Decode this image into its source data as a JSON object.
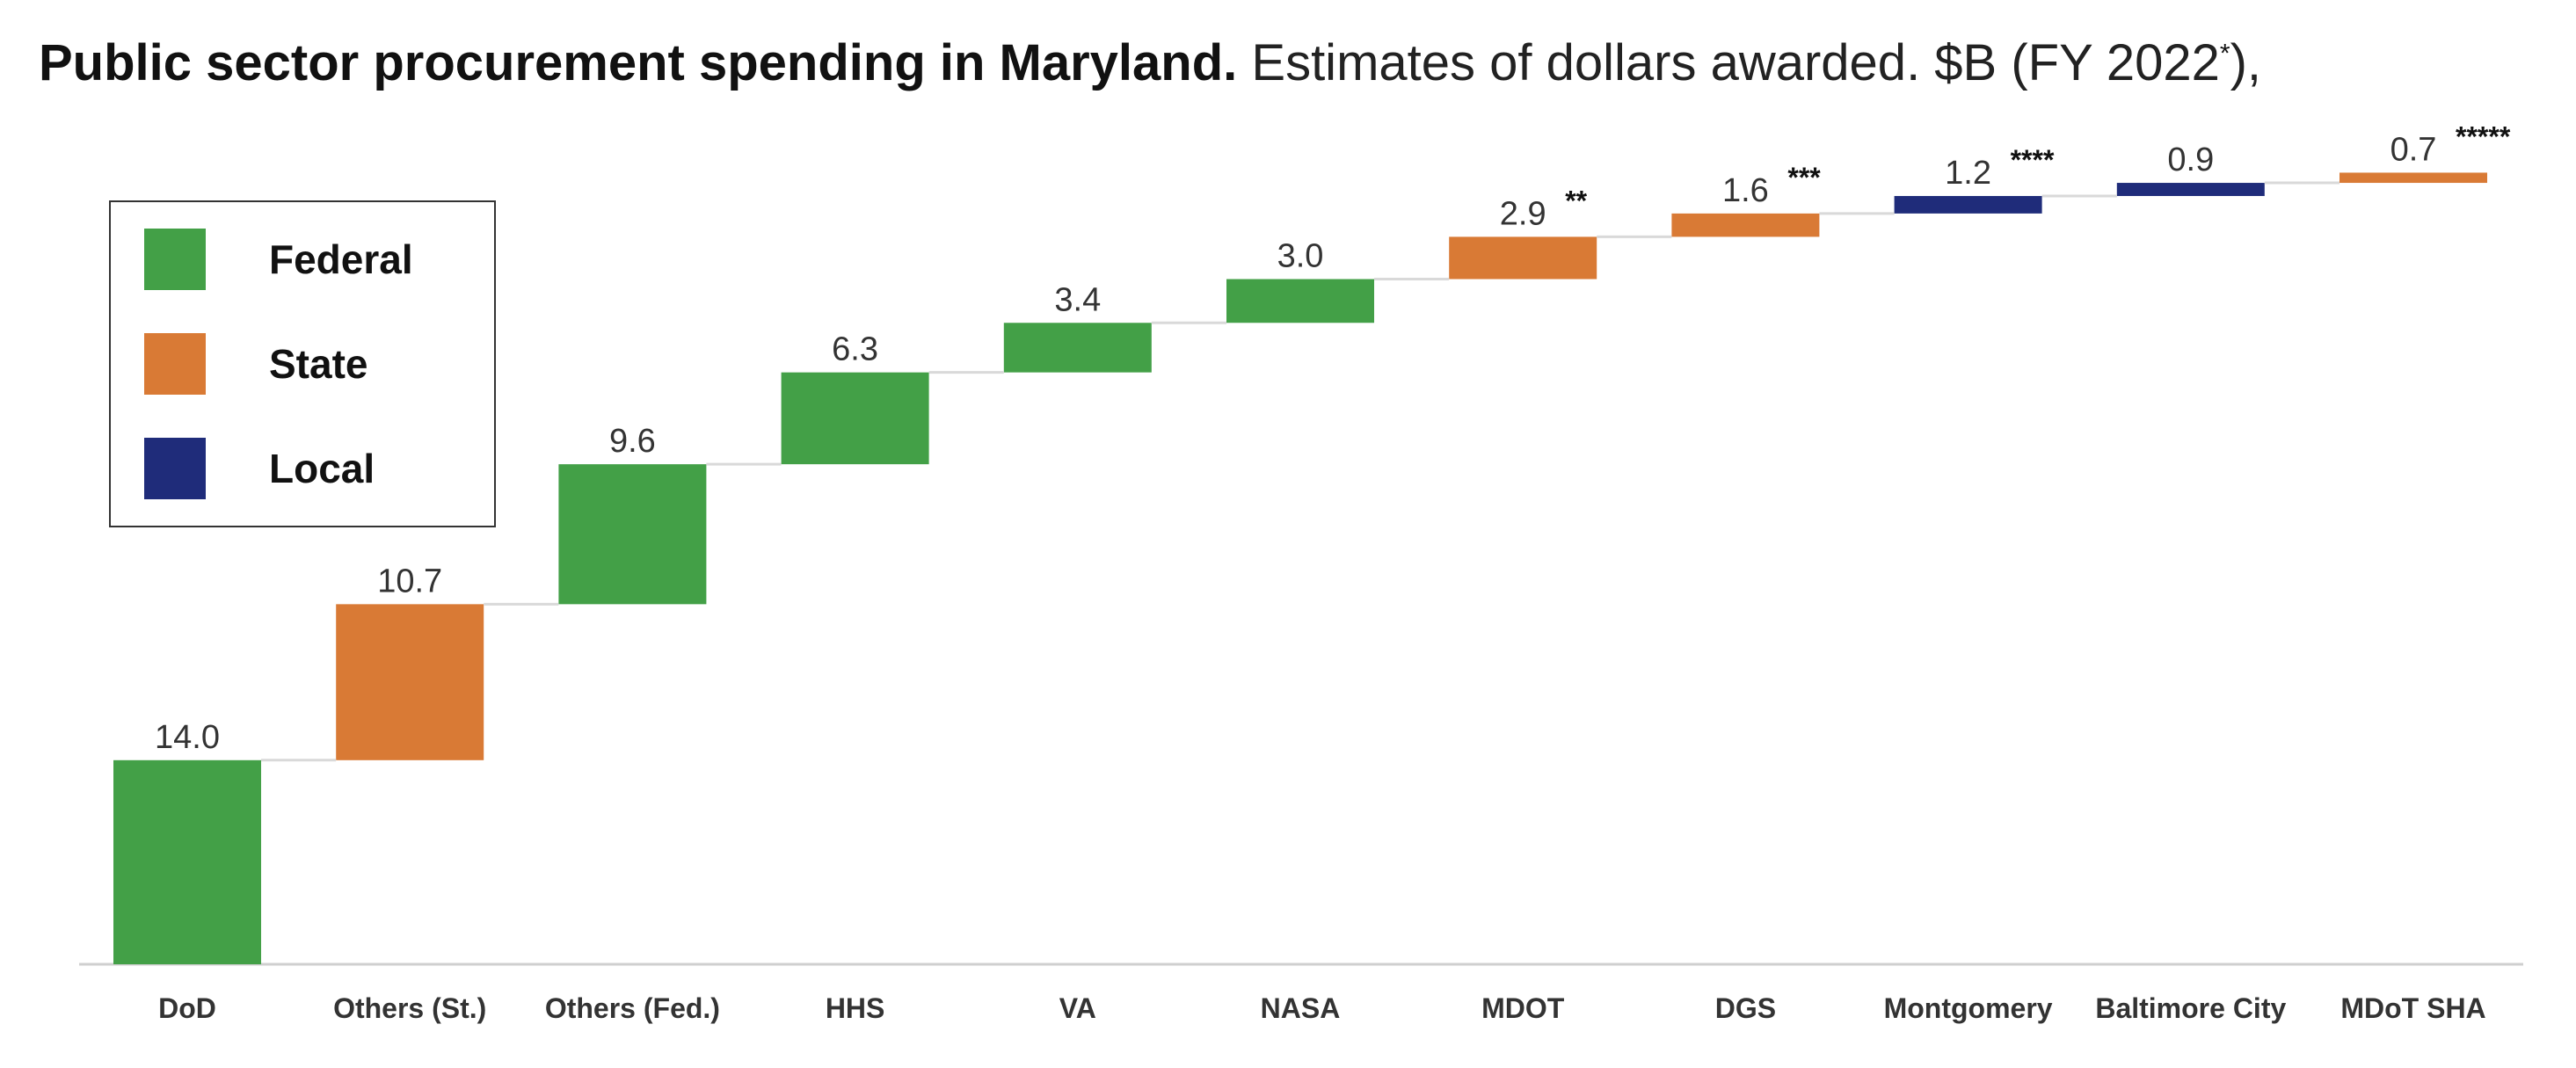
{
  "title": {
    "bold": "Public sector procurement spending in Maryland.",
    "light": " Estimates of dollars awarded. $B (FY 2022",
    "sup": "*",
    "end": "),"
  },
  "legend": {
    "items": [
      {
        "label": "Federal",
        "color": "#43a047"
      },
      {
        "label": "State",
        "color": "#d97a35"
      },
      {
        "label": "Local",
        "color": "#1f2c7a"
      }
    ]
  },
  "chart_data": {
    "type": "bar",
    "subtype": "waterfall",
    "categories": [
      "DoD",
      "Others (St.)",
      "Others (Fed.)",
      "HHS",
      "VA",
      "NASA",
      "MDOT",
      "DGS",
      "Montgomery",
      "Baltimore City",
      "MDoT SHA"
    ],
    "values": [
      14.0,
      10.7,
      9.6,
      6.3,
      3.4,
      3.0,
      2.9,
      1.6,
      1.2,
      0.9,
      0.7
    ],
    "value_labels": [
      "14.0",
      "10.7",
      "9.6",
      "6.3",
      "3.4",
      "3.0",
      "2.9",
      "1.6",
      "1.2",
      "0.9",
      "0.7"
    ],
    "sectors": [
      "Federal",
      "State",
      "Federal",
      "Federal",
      "Federal",
      "Federal",
      "State",
      "State",
      "Local",
      "Local",
      "State"
    ],
    "annotations": [
      "",
      "",
      "",
      "",
      "",
      "",
      "**",
      "***",
      "****",
      "",
      "*****"
    ],
    "colors": {
      "Federal": "#43a047",
      "State": "#d97a35",
      "Local": "#1f2c7a"
    },
    "ylim": [
      0,
      57.1
    ],
    "grid": false,
    "legend_position": "top-left"
  }
}
